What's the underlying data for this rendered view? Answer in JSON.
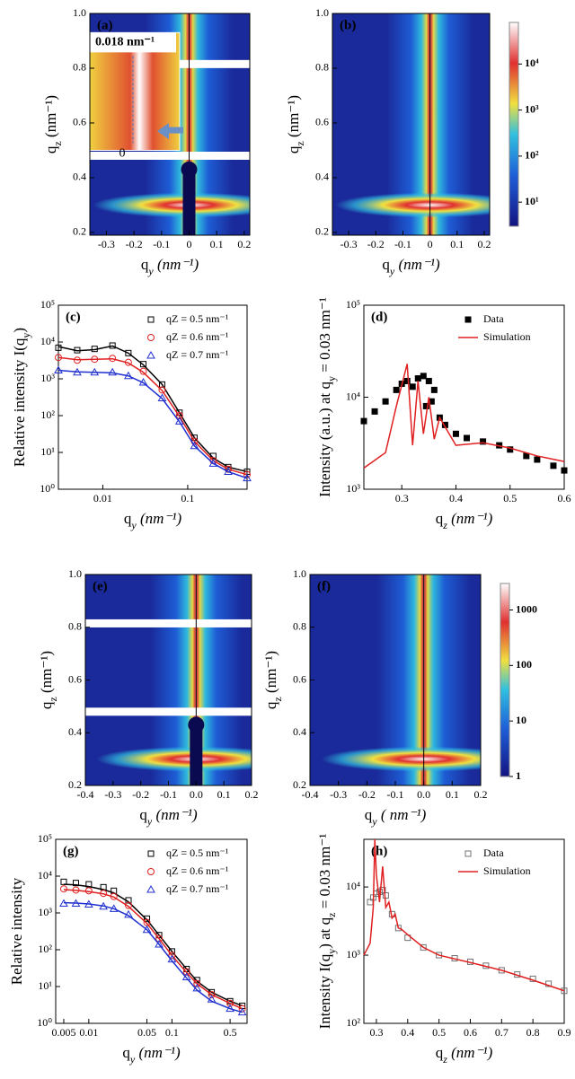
{
  "chart_data": [
    {
      "type": "heatmap",
      "panel_label": "(a)",
      "x_label": [
        "q",
        "y",
        " (nm⁻¹)"
      ],
      "y_label": [
        "q",
        "z",
        " (nm⁻¹)"
      ],
      "xlim": [
        -0.36,
        0.22
      ],
      "ylim": [
        0.19,
        1.0
      ],
      "xticks": [
        -0.3,
        -0.2,
        -0.1,
        0,
        0.1,
        0.2
      ],
      "yticks": [
        0.2,
        0.4,
        0.6,
        0.8,
        {
          "value": 1,
          "label": "1.0"
        }
      ],
      "annotations": [
        "0.018 nm⁻¹",
        "0"
      ],
      "beamstop": true,
      "detector_gaps": true
    },
    {
      "type": "heatmap",
      "panel_label": "(b)",
      "x_label": [
        "q",
        "y",
        " (nm⁻¹)"
      ],
      "y_label": [
        "q",
        "z",
        " (nm⁻¹)"
      ],
      "xlim": [
        -0.36,
        0.22
      ],
      "ylim": [
        0.19,
        1.0
      ],
      "xticks": [
        -0.3,
        -0.2,
        -0.1,
        0,
        0.1,
        0.2
      ],
      "yticks": [
        0.2,
        0.4,
        0.6,
        0.8,
        {
          "value": 1,
          "label": "1.0"
        }
      ],
      "colorbar": {
        "scale": "log",
        "lim": [
          3,
          80000
        ],
        "ticks": [
          {
            "value": 10,
            "label": "10¹"
          },
          {
            "value": 100,
            "label": "10²"
          },
          {
            "value": 1000,
            "label": "10³"
          },
          {
            "value": 10000,
            "label": "10⁴"
          }
        ]
      }
    },
    {
      "type": "scatter",
      "panel_label": "(c)",
      "x_label": [
        "q",
        "y",
        " (nm⁻¹)"
      ],
      "y_label": [
        "Relative intensity I(q",
        "y",
        ")"
      ],
      "xscale": "log",
      "yscale": "log",
      "xlim": [
        0.003,
        0.5
      ],
      "ylim": [
        1,
        100000
      ],
      "xticks": [
        0.01,
        0.1
      ],
      "yticks": [
        {
          "value": 1,
          "label": "10⁰"
        },
        {
          "value": 10,
          "label": "10¹"
        },
        {
          "value": 100,
          "label": "10²"
        },
        {
          "value": 1000,
          "label": "10³"
        },
        {
          "value": 10000,
          "label": "10⁴"
        },
        {
          "value": 100000,
          "label": "10⁵"
        }
      ],
      "legend": "upper right",
      "x": [
        0.003,
        0.005,
        0.008,
        0.013,
        0.02,
        0.03,
        0.05,
        0.08,
        0.12,
        0.2,
        0.3,
        0.5
      ],
      "series": [
        {
          "name": "qZ = 0.5 nm⁻¹",
          "color": "#000000",
          "marker": "square",
          "values": [
            7000,
            6000,
            6500,
            8000,
            5000,
            2500,
            700,
            120,
            25,
            8,
            4,
            3
          ],
          "fit": [
            7500,
            5800,
            6200,
            7800,
            5000,
            2400,
            700,
            120,
            25,
            7,
            4,
            3
          ]
        },
        {
          "name": "qZ = 0.6 nm⁻¹",
          "color": "#e02020",
          "marker": "circle",
          "values": [
            3800,
            3200,
            3400,
            3600,
            2800,
            1600,
            500,
            100,
            20,
            6,
            3.5,
            2.5
          ],
          "fit": [
            3800,
            3300,
            3400,
            3500,
            2700,
            1500,
            480,
            95,
            20,
            6,
            3.5,
            2.5
          ]
        },
        {
          "name": "qZ = 0.7 nm⁻¹",
          "color": "#2030d0",
          "marker": "triangle",
          "values": [
            1700,
            1500,
            1500,
            1500,
            1200,
            800,
            300,
            70,
            15,
            5,
            3,
            2
          ],
          "fit": [
            1700,
            1550,
            1500,
            1450,
            1200,
            780,
            290,
            68,
            15,
            5,
            3,
            2
          ]
        }
      ]
    },
    {
      "type": "scatter",
      "panel_label": "(d)",
      "x_label": [
        "q",
        "z",
        " (nm⁻¹)"
      ],
      "y_label": [
        "Intensity (a.u.) at q",
        "y",
        " = 0.03 nm⁻¹"
      ],
      "yscale": "log",
      "xlim": [
        0.23,
        0.6
      ],
      "ylim": [
        1000,
        100000
      ],
      "xticks": [
        0.3,
        0.4,
        0.5,
        0.6
      ],
      "yticks": [
        {
          "value": 1000,
          "label": "10³"
        },
        {
          "value": 10000,
          "label": "10⁴"
        },
        {
          "value": 100000,
          "label": "10⁵"
        }
      ],
      "legend": "upper right",
      "series": [
        {
          "name": "Data",
          "color": "#000000",
          "marker": "square",
          "filled": true,
          "x": [
            0.23,
            0.25,
            0.27,
            0.29,
            0.3,
            0.31,
            0.32,
            0.33,
            0.34,
            0.345,
            0.35,
            0.355,
            0.36,
            0.37,
            0.38,
            0.4,
            0.42,
            0.45,
            0.48,
            0.5,
            0.53,
            0.55,
            0.58,
            0.6
          ],
          "values": [
            5500,
            7000,
            9000,
            12000,
            14000,
            15000,
            13000,
            16000,
            17000,
            8000,
            15000,
            9000,
            12000,
            6000,
            5000,
            4000,
            3600,
            3300,
            3000,
            2700,
            2300,
            2100,
            1800,
            1600
          ]
        },
        {
          "name": "Simulation",
          "color": "#e02020",
          "style": "line",
          "x": [
            0.23,
            0.27,
            0.29,
            0.31,
            0.32,
            0.33,
            0.34,
            0.35,
            0.36,
            0.37,
            0.4,
            0.45,
            0.5,
            0.55,
            0.6
          ],
          "values": [
            1700,
            2500,
            8000,
            23000,
            3000,
            15000,
            4000,
            10000,
            3500,
            6000,
            3000,
            3200,
            2800,
            2300,
            2000
          ]
        }
      ]
    },
    {
      "type": "heatmap",
      "panel_label": "(e)",
      "x_label": [
        "q",
        "y",
        " (nm⁻¹)"
      ],
      "y_label": [
        "q",
        "z",
        " (nm⁻¹)"
      ],
      "xlim": [
        -0.4,
        0.2
      ],
      "ylim": [
        0.2,
        1.0
      ],
      "xticks": [
        -0.4,
        -0.3,
        -0.2,
        -0.1,
        {
          "value": 0,
          "label": "0.0"
        },
        0.1,
        0.2
      ],
      "yticks": [
        0.2,
        0.4,
        0.6,
        0.8,
        {
          "value": 1,
          "label": "1.0"
        }
      ],
      "beamstop": true,
      "detector_gaps": true
    },
    {
      "type": "heatmap",
      "panel_label": "(f)",
      "x_label": [
        "q",
        "y",
        " ( nm⁻¹)"
      ],
      "y_label": [
        "q",
        "z",
        " (nm⁻¹)"
      ],
      "xlim": [
        -0.4,
        0.2
      ],
      "ylim": [
        0.2,
        1.0
      ],
      "xticks": [
        -0.4,
        -0.3,
        -0.2,
        -0.1,
        {
          "value": 0,
          "label": "0.0"
        },
        0.1,
        0.2
      ],
      "yticks": [
        0.2,
        0.4,
        0.6,
        0.8,
        {
          "value": 1,
          "label": "1.0"
        }
      ],
      "colorbar": {
        "scale": "log",
        "lim": [
          1,
          3000
        ],
        "ticks": [
          1,
          10,
          100,
          1000
        ]
      }
    },
    {
      "type": "scatter",
      "panel_label": "(g)",
      "x_label": [
        "q",
        "y",
        " (nm⁻¹)"
      ],
      "y_label": [
        "Relative intensity"
      ],
      "xscale": "log",
      "yscale": "log",
      "xlim": [
        0.004,
        0.8
      ],
      "ylim": [
        1,
        100000
      ],
      "xticks": [
        0.005,
        0.01,
        0.05,
        0.1,
        0.5
      ],
      "yticks": [
        {
          "value": 1,
          "label": "10⁰"
        },
        {
          "value": 10,
          "label": "10¹"
        },
        {
          "value": 100,
          "label": "10²"
        },
        {
          "value": 1000,
          "label": "10³"
        },
        {
          "value": 10000,
          "label": "10⁴"
        },
        {
          "value": 100000,
          "label": "10⁵"
        }
      ],
      "legend": "upper right",
      "x": [
        0.005,
        0.007,
        0.01,
        0.015,
        0.02,
        0.03,
        0.05,
        0.07,
        0.1,
        0.15,
        0.2,
        0.3,
        0.5,
        0.7
      ],
      "series": [
        {
          "name": "qZ = 0.5 nm⁻¹",
          "color": "#000000",
          "marker": "square",
          "values": [
            7000,
            6500,
            6000,
            5000,
            4000,
            2200,
            700,
            250,
            90,
            30,
            15,
            7,
            4,
            3
          ],
          "fit": [
            6000,
            5800,
            5200,
            4300,
            3500,
            2000,
            650,
            250,
            90,
            30,
            14,
            7,
            4,
            3
          ]
        },
        {
          "name": "qZ = 0.6 nm⁻¹",
          "color": "#e02020",
          "marker": "circle",
          "values": [
            4500,
            4200,
            4000,
            3400,
            2800,
            1600,
            550,
            200,
            70,
            25,
            12,
            6,
            3.5,
            2.5
          ],
          "fit": [
            4300,
            4100,
            3800,
            3300,
            2700,
            1500,
            520,
            200,
            70,
            24,
            12,
            6,
            3.5,
            2.5
          ]
        },
        {
          "name": "qZ = 0.7 nm⁻¹",
          "color": "#2030d0",
          "marker": "triangle",
          "values": [
            1800,
            1800,
            1700,
            1500,
            1300,
            900,
            350,
            140,
            55,
            18,
            9,
            4.5,
            2.5,
            2
          ],
          "fit": [
            1900,
            1850,
            1750,
            1550,
            1300,
            850,
            350,
            140,
            50,
            17,
            8,
            4,
            2.5,
            2
          ]
        }
      ]
    },
    {
      "type": "scatter",
      "panel_label": "(h)",
      "x_label": [
        "q",
        "z",
        " (nm⁻¹)"
      ],
      "y_label": [
        "Intensity I(q",
        "y",
        ") at q",
        "z",
        " = 0.03 nm⁻¹"
      ],
      "yscale": "log",
      "xlim": [
        0.26,
        0.9
      ],
      "ylim": [
        100,
        50000
      ],
      "xticks": [
        0.3,
        0.4,
        0.5,
        0.6,
        0.7,
        0.8,
        0.9
      ],
      "yticks": [
        {
          "value": 100,
          "label": "10²"
        },
        {
          "value": 1000,
          "label": "10³"
        },
        {
          "value": 10000,
          "label": "10⁴"
        }
      ],
      "legend": "upper right",
      "series": [
        {
          "name": "Data",
          "color": "#707070",
          "marker": "square",
          "x": [
            0.28,
            0.29,
            0.3,
            0.31,
            0.32,
            0.33,
            0.35,
            0.37,
            0.4,
            0.45,
            0.5,
            0.55,
            0.6,
            0.65,
            0.7,
            0.75,
            0.8,
            0.85,
            0.9
          ],
          "values": [
            6000,
            7000,
            8000,
            8500,
            9000,
            7500,
            4000,
            2500,
            1800,
            1300,
            1000,
            900,
            800,
            700,
            600,
            520,
            450,
            380,
            300
          ]
        },
        {
          "name": "Simulation",
          "color": "#e02020",
          "style": "line",
          "x": [
            0.26,
            0.28,
            0.29,
            0.295,
            0.3,
            0.31,
            0.32,
            0.325,
            0.33,
            0.34,
            0.35,
            0.36,
            0.37,
            0.38,
            0.4,
            0.45,
            0.5,
            0.6,
            0.7,
            0.8,
            0.9
          ],
          "values": [
            1000,
            1500,
            5000,
            50000,
            15000,
            6000,
            20000,
            10000,
            5000,
            6000,
            3500,
            4000,
            2500,
            2400,
            2000,
            1300,
            1000,
            780,
            600,
            430,
            300
          ]
        }
      ]
    }
  ]
}
